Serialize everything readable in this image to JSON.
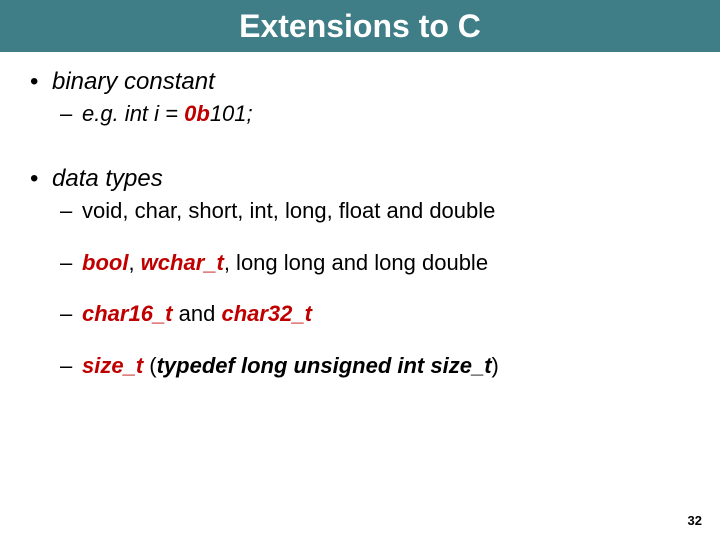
{
  "title": "Extensions to C",
  "bullets": {
    "b1": "binary constant",
    "b1_1_pre": "e.g. int i = ",
    "b1_1_0b": "0b",
    "b1_1_post": "101;",
    "b2": "data types",
    "b2_1": "void, char, short, int, long, float and double",
    "b2_2_bool": "bool",
    "b2_2_c1": ", ",
    "b2_2_wchar": "wchar_t",
    "b2_2_rest": ", long long and long double",
    "b2_3_c16": "char16_t",
    "b2_3_and": " and ",
    "b2_3_c32": "char32_t",
    "b2_4_size": "size_t",
    "b2_4_sp": "  (",
    "b2_4_def": "typedef long unsigned int size_t",
    "b2_4_close": ")"
  },
  "page_number": "32",
  "colors": {
    "title_bg": "#3f7d87",
    "title_fg": "#ffffff",
    "text": "#000000",
    "red": "#c00000"
  }
}
